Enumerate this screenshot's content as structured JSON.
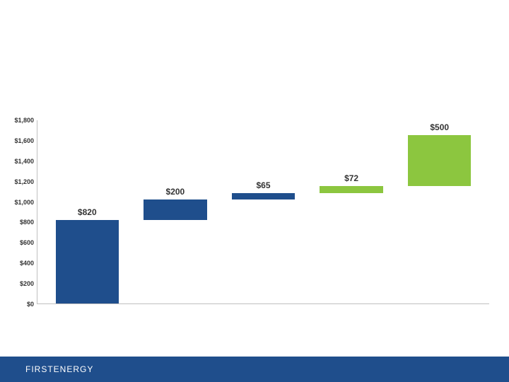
{
  "chart": {
    "type": "waterfall-bar",
    "background_color": "#ffffff",
    "axis_color": "#bfbfbf",
    "tick_font_size": 9,
    "tick_color": "#333333",
    "label_font_size": 12,
    "label_color": "#333333",
    "ylim": [
      0,
      1800
    ],
    "ytick_step": 200,
    "yticks": [
      "$0",
      "$200",
      "$400",
      "$600",
      "$800",
      "$1,000",
      "$1,200",
      "$1,400",
      "$1,600",
      "$1,800"
    ],
    "bar_width_pct": 14,
    "bar_gap_pct": 5.5,
    "bars": [
      {
        "label": "$820",
        "base": 0,
        "value": 820,
        "color": "#1f4e8c"
      },
      {
        "label": "$200",
        "base": 820,
        "value": 200,
        "color": "#1f4e8c"
      },
      {
        "label": "$65",
        "base": 1020,
        "value": 65,
        "color": "#1f4e8c"
      },
      {
        "label": "$72",
        "base": 1085,
        "value": 72,
        "color": "#8cc63f"
      },
      {
        "label": "$500",
        "base": 1157,
        "value": 500,
        "color": "#8cc63f"
      }
    ]
  },
  "footer": {
    "label": "FIRSTENERGY",
    "bg_color": "#1f4e8c",
    "text_color": "#ffffff"
  }
}
